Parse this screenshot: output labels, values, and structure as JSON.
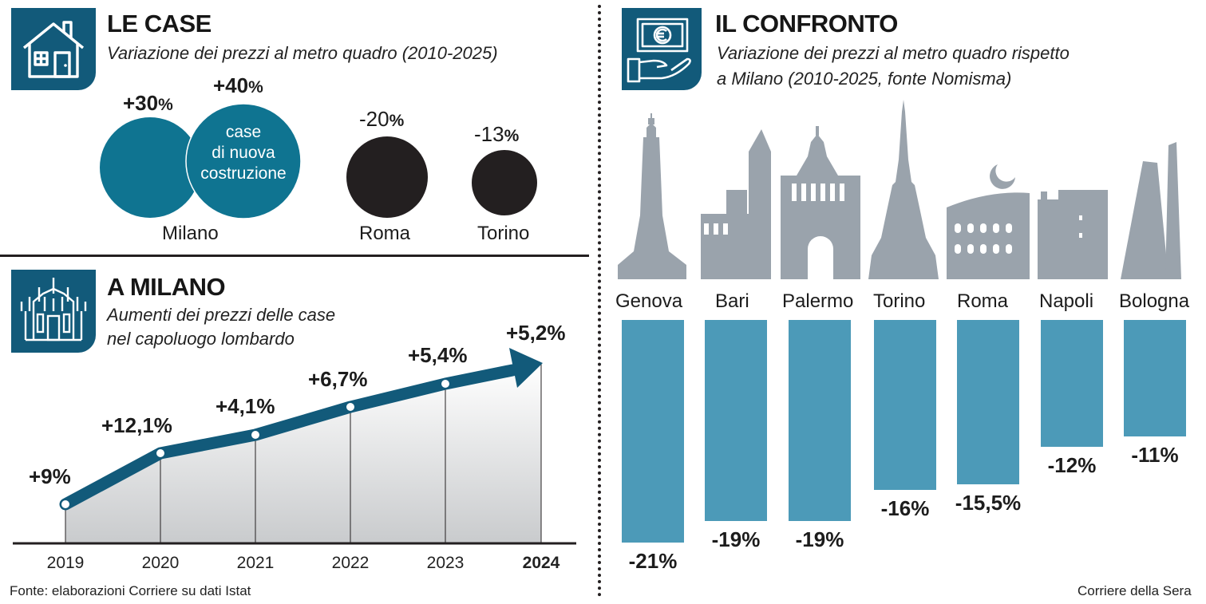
{
  "colors": {
    "accent": "#125a7a",
    "teal": "#0f7491",
    "bar": "#4c9ab8",
    "dark": "#231f20",
    "skyline": "#9aa3ac"
  },
  "le_case": {
    "title": "LE CASE",
    "subtitle": "Variazione dei prezzi al metro quadro (2010-2025)",
    "milano_pct": "+30",
    "new_pct": "+40",
    "new_label_1": "case",
    "new_label_2": "di nuova",
    "new_label_3": "costruzione",
    "roma_pct": "-20",
    "torino_pct": "-13",
    "milano_label": "Milano",
    "roma_label": "Roma",
    "torino_label": "Torino",
    "percent_sign": "%",
    "icon": "house-icon"
  },
  "a_milano": {
    "title": "A MILANO",
    "subtitle_1": "Aumenti dei prezzi delle case",
    "subtitle_2": "nel capoluogo lombardo",
    "icon": "duomo-icon"
  },
  "il_confronto": {
    "title": "IL CONFRONTO",
    "subtitle_1": "Variazione dei prezzi al metro quadro rispetto",
    "subtitle_2": "a Milano (2010-2025, fonte Nomisma)",
    "icon": "money-hand-icon"
  },
  "chart_data": [
    {
      "type": "bar",
      "title": "LE CASE",
      "subtitle": "Variazione dei prezzi al metro quadro (2010-2025)",
      "categories": [
        "Milano",
        "Milano - case di nuova costruzione",
        "Roma",
        "Torino"
      ],
      "values": [
        30,
        40,
        -20,
        -13
      ],
      "labels": [
        "+30%",
        "+40%",
        "-20%",
        "-13%"
      ]
    },
    {
      "type": "line",
      "title": "A MILANO",
      "subtitle": "Aumenti dei prezzi delle case nel capoluogo lombardo",
      "x": [
        "2019",
        "2020",
        "2021",
        "2022",
        "2023",
        "2024"
      ],
      "values": [
        9,
        12.1,
        4.1,
        6.7,
        5.4,
        5.2
      ],
      "labels": [
        "+9%",
        "+12,1%",
        "+4,1%",
        "+6,7%",
        "+5,4%",
        "+5,2%"
      ],
      "highlight": "2024"
    },
    {
      "type": "bar",
      "title": "IL CONFRONTO",
      "subtitle": "Variazione dei prezzi al metro quadro rispetto a Milano (2010-2025, fonte Nomisma)",
      "categories": [
        "Genova",
        "Bari",
        "Palermo",
        "Torino",
        "Roma",
        "Napoli",
        "Bologna"
      ],
      "values": [
        -21,
        -19,
        -19,
        -16,
        -15.5,
        -12,
        -11
      ],
      "labels": [
        "-21%",
        "-19%",
        "-19%",
        "-16%",
        "-15,5%",
        "-12%",
        "-11%"
      ],
      "ylim": [
        -21,
        0
      ]
    }
  ],
  "footer": {
    "source": "Fonte: elaborazioni Corriere su dati Istat",
    "credit": "Corriere della Sera"
  }
}
